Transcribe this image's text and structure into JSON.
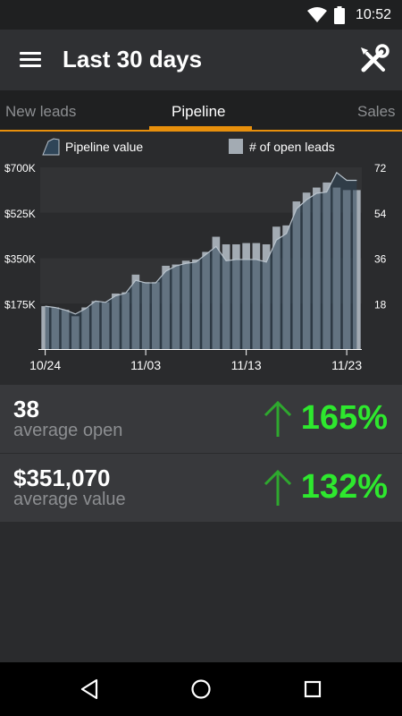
{
  "status": {
    "time": "10:52",
    "icons": [
      "wifi-icon",
      "battery-icon"
    ]
  },
  "header": {
    "title": "Last 30 days",
    "menu_icon": "menu-icon",
    "tools_icon": "wrench-screwdriver-icon"
  },
  "tabs": [
    {
      "label": "New leads",
      "active": false
    },
    {
      "label": "Pipeline",
      "active": true
    },
    {
      "label": "Sales",
      "active": false
    }
  ],
  "colors": {
    "accent": "#e8900c",
    "positive": "#2ee82e",
    "bar": "#a3abb3",
    "area": "#2f4558",
    "line": "#b9c3cc"
  },
  "chart_data": {
    "type": "bar+area",
    "legend": [
      "Pipeline value",
      "# of open leads"
    ],
    "legend_position": "top",
    "y_left_ticks": [
      "$175K",
      "$350K",
      "$525K",
      "$700K"
    ],
    "y_left_range": [
      0,
      700000
    ],
    "y_right_ticks": [
      "18",
      "36",
      "54",
      "72"
    ],
    "y_right_range": [
      0,
      72
    ],
    "x_ticks": [
      "10/24",
      "11/03",
      "11/13",
      "11/23"
    ],
    "x_tick_indices": [
      0,
      10,
      20,
      30
    ],
    "bars_open_leads": [
      17,
      16.5,
      15.5,
      13,
      16.5,
      19,
      18.5,
      22,
      22.5,
      29.5,
      26.5,
      26.5,
      33,
      33.5,
      35,
      35.5,
      38.5,
      44.5,
      41.5,
      41.5,
      42,
      42,
      41.5,
      48.5,
      49,
      58.5,
      62,
      64,
      66,
      64,
      63,
      63
    ],
    "pipeline_value": [
      165000,
      160000,
      150000,
      135000,
      155000,
      185000,
      180000,
      205000,
      215000,
      265000,
      255000,
      255000,
      300000,
      320000,
      330000,
      335000,
      365000,
      395000,
      340000,
      345000,
      345000,
      345000,
      335000,
      420000,
      445000,
      540000,
      575000,
      600000,
      605000,
      680000,
      650000,
      650000
    ]
  },
  "stats": [
    {
      "value": "38",
      "label": "average open",
      "change": "165%",
      "arrow_icon": "arrow-up-icon"
    },
    {
      "value": "$351,070",
      "label": "average value",
      "change": "132%",
      "arrow_icon": "arrow-up-icon"
    }
  ],
  "nav": [
    "back-icon",
    "home-icon",
    "recents-icon"
  ]
}
